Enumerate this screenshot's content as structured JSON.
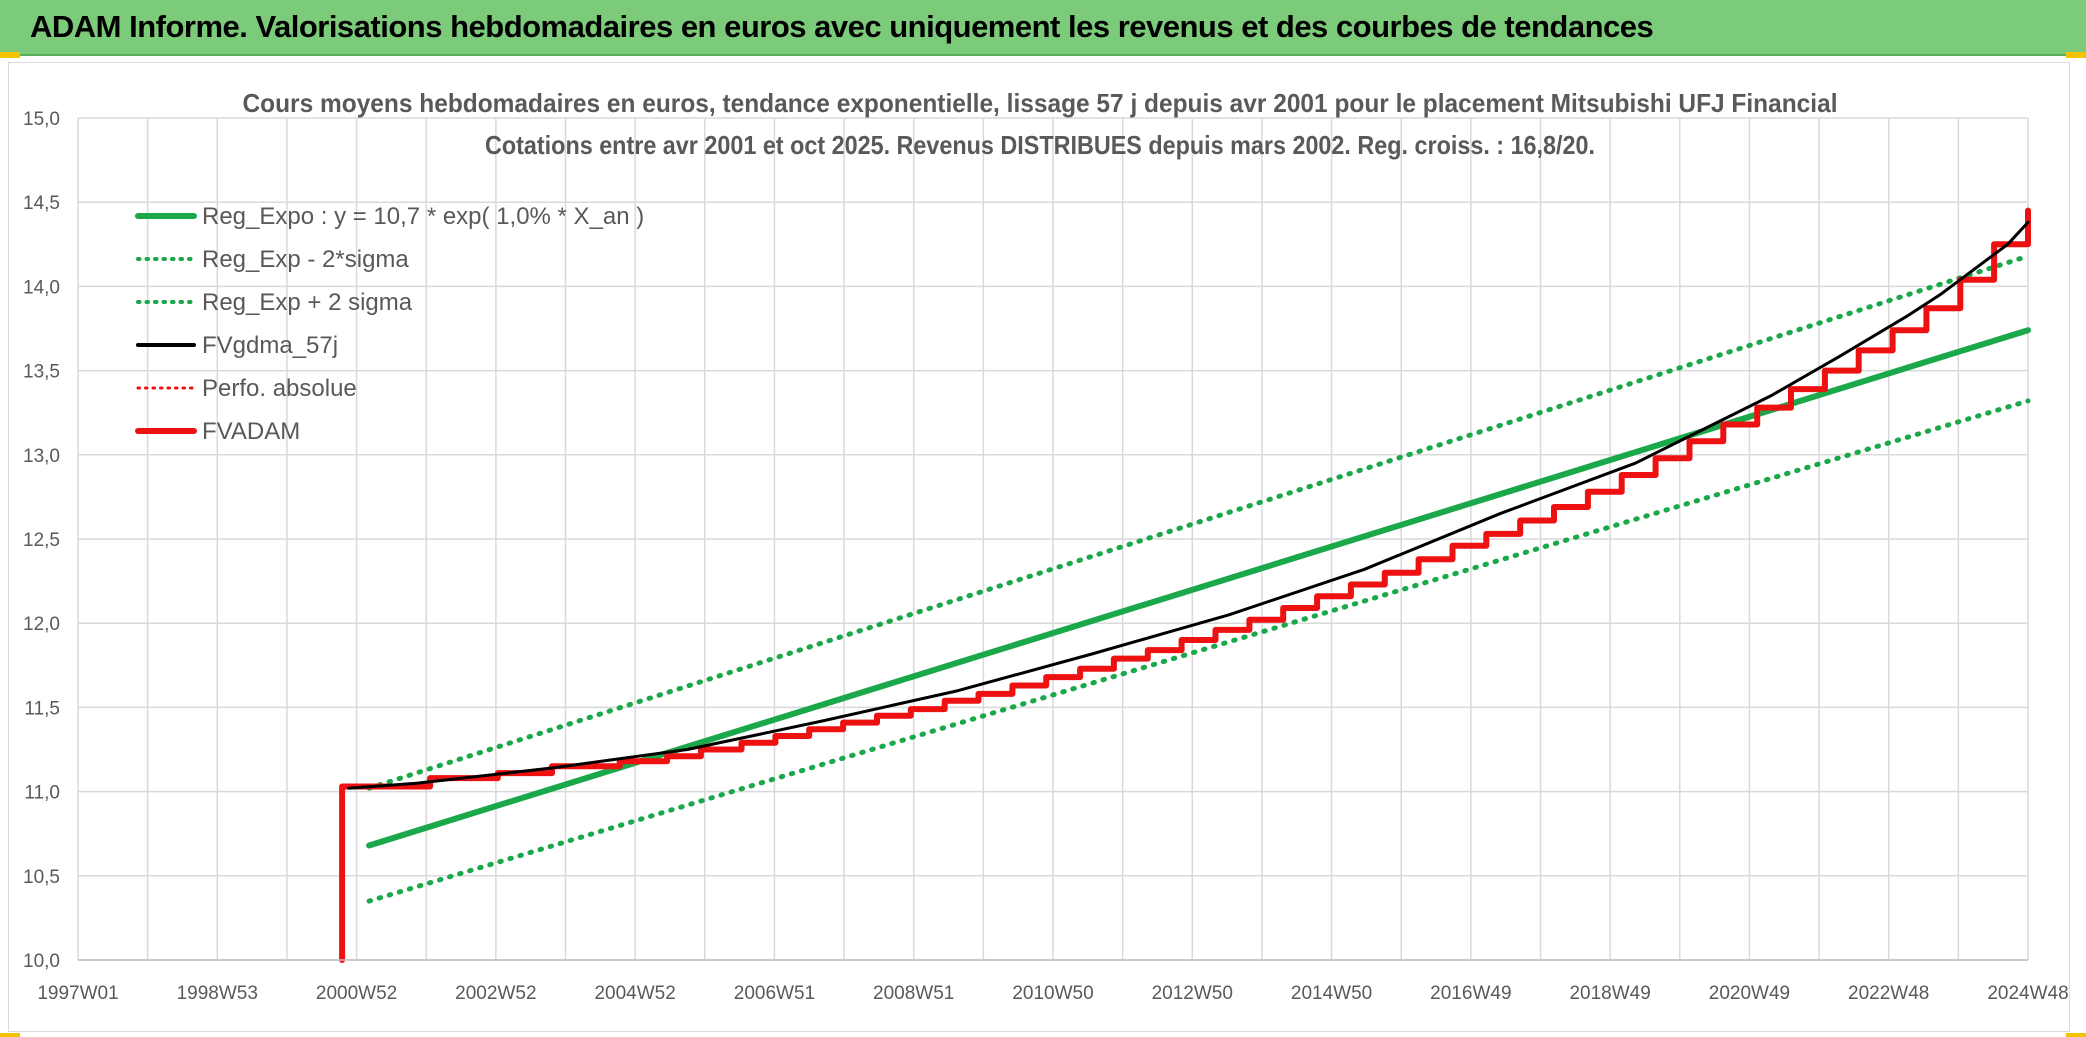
{
  "header": {
    "title": "ADAM Informe. Valorisations hebdomadaires en euros avec uniquement les revenus et des courbes de tendances"
  },
  "colors": {
    "header_bg": "#7ccb7a",
    "reg_green": "#1aa84a",
    "red": "#ee1111",
    "black": "#000000",
    "grid": "#d9d9d9"
  },
  "chart_data": {
    "type": "line",
    "title": "Cours moyens hebdomadaires en euros, tendance exponentielle, lissage 57 j depuis avr 2001 pour le placement Mitsubishi UFJ Financial",
    "subtitle": "Cotations entre avr 2001 et oct 2025. Revenus DISTRIBUES depuis mars 2002. Reg. croiss. : 16,8/20.",
    "xlabel": "",
    "ylabel": "",
    "x_tick_labels": [
      "1997W01",
      "1998W53",
      "2000W52",
      "2002W52",
      "2004W52",
      "2006W51",
      "2008W51",
      "2010W50",
      "2012W50",
      "2014W50",
      "2016W49",
      "2018W49",
      "2020W49",
      "2022W48",
      "2024W48"
    ],
    "xlim": [
      1997.0,
      2025.8
    ],
    "ylim": [
      10.0,
      15.0
    ],
    "y_ticks": [
      "10,0",
      "10,5",
      "11,0",
      "11,5",
      "12,0",
      "12,5",
      "13,0",
      "13,5",
      "14,0",
      "14,5",
      "15,0"
    ],
    "grid": true,
    "legend_position": "top-left",
    "legend": [
      {
        "key": "reg_expo",
        "label": "Reg_Expo : y = 10,7 * exp( 1,0% *  X_an )",
        "style": "solid-thick-green"
      },
      {
        "key": "reg_minus",
        "label": "Reg_Exp - 2*sigma",
        "style": "dotted-green"
      },
      {
        "key": "reg_plus",
        "label": "Reg_Exp + 2 sigma",
        "style": "dotted-green"
      },
      {
        "key": "fvgdma",
        "label": "FVgdma_57j",
        "style": "solid-black"
      },
      {
        "key": "perfo",
        "label": "Perfo. absolue",
        "style": "dotted-red"
      },
      {
        "key": "fvadam",
        "label": "FVADAM",
        "style": "solid-thick-red"
      }
    ],
    "series": [
      {
        "name": "Reg_Expo : y = 10,7 * exp( 1,0% *  X_an )",
        "x": [
          2001.3,
          2025.8
        ],
        "values": [
          10.68,
          13.74
        ]
      },
      {
        "name": "Reg_Exp - 2*sigma",
        "x": [
          2001.3,
          2025.8
        ],
        "values": [
          10.35,
          13.32
        ]
      },
      {
        "name": "Reg_Exp + 2 sigma",
        "x": [
          2001.3,
          2025.8
        ],
        "values": [
          11.02,
          14.18
        ]
      },
      {
        "name": "FVADAM",
        "x": [
          2000.9,
          2000.9,
          2002.2,
          2002.2,
          2003.2,
          2003.2,
          2004.0,
          2004.0,
          2005.0,
          2005.0,
          2005.7,
          2005.7,
          2006.2,
          2006.2,
          2006.8,
          2006.8,
          2007.3,
          2007.3,
          2007.8,
          2007.8,
          2008.3,
          2008.3,
          2008.8,
          2008.8,
          2009.3,
          2009.3,
          2009.8,
          2009.8,
          2010.3,
          2010.3,
          2010.8,
          2010.8,
          2011.3,
          2011.3,
          2011.8,
          2011.8,
          2012.3,
          2012.3,
          2012.8,
          2012.8,
          2013.3,
          2013.3,
          2013.8,
          2013.8,
          2014.3,
          2014.3,
          2014.8,
          2014.8,
          2015.3,
          2015.3,
          2015.8,
          2015.8,
          2016.3,
          2016.3,
          2016.8,
          2016.8,
          2017.3,
          2017.3,
          2017.8,
          2017.8,
          2018.3,
          2018.3,
          2018.8,
          2018.8,
          2019.3,
          2019.3,
          2019.8,
          2019.8,
          2020.3,
          2020.3,
          2020.8,
          2020.8,
          2021.3,
          2021.3,
          2021.8,
          2021.8,
          2022.3,
          2022.3,
          2022.8,
          2022.8,
          2023.3,
          2023.3,
          2023.8,
          2023.8,
          2024.3,
          2024.3,
          2024.8,
          2024.8,
          2025.3,
          2025.3,
          2025.8,
          2025.8
        ],
        "values": [
          10.0,
          11.03,
          11.03,
          11.08,
          11.08,
          11.11,
          11.11,
          11.15,
          11.15,
          11.18,
          11.18,
          11.21,
          11.21,
          11.25,
          11.25,
          11.29,
          11.29,
          11.33,
          11.33,
          11.37,
          11.37,
          11.41,
          11.41,
          11.45,
          11.45,
          11.49,
          11.49,
          11.54,
          11.54,
          11.58,
          11.58,
          11.63,
          11.63,
          11.68,
          11.68,
          11.73,
          11.73,
          11.79,
          11.79,
          11.84,
          11.84,
          11.9,
          11.9,
          11.96,
          11.96,
          12.02,
          12.02,
          12.09,
          12.09,
          12.16,
          12.16,
          12.23,
          12.23,
          12.3,
          12.3,
          12.38,
          12.38,
          12.46,
          12.46,
          12.53,
          12.53,
          12.61,
          12.61,
          12.69,
          12.69,
          12.78,
          12.78,
          12.88,
          12.88,
          12.98,
          12.98,
          13.08,
          13.08,
          13.18,
          13.18,
          13.28,
          13.28,
          13.39,
          13.39,
          13.5,
          13.5,
          13.62,
          13.62,
          13.74,
          13.74,
          13.87,
          13.87,
          14.04,
          14.04,
          14.25,
          14.25,
          14.45
        ]
      },
      {
        "name": "FVgdma_57j",
        "x": [
          2001.0,
          2002.0,
          2004.0,
          2006.0,
          2008.0,
          2010.0,
          2012.0,
          2014.0,
          2016.0,
          2018.0,
          2020.0,
          2021.0,
          2022.0,
          2023.0,
          2024.0,
          2024.5,
          2025.0,
          2025.5,
          2025.8
        ],
        "values": [
          11.02,
          11.05,
          11.14,
          11.25,
          11.42,
          11.6,
          11.82,
          12.05,
          12.32,
          12.65,
          12.95,
          13.15,
          13.35,
          13.58,
          13.82,
          13.95,
          14.1,
          14.25,
          14.38
        ]
      }
    ]
  }
}
